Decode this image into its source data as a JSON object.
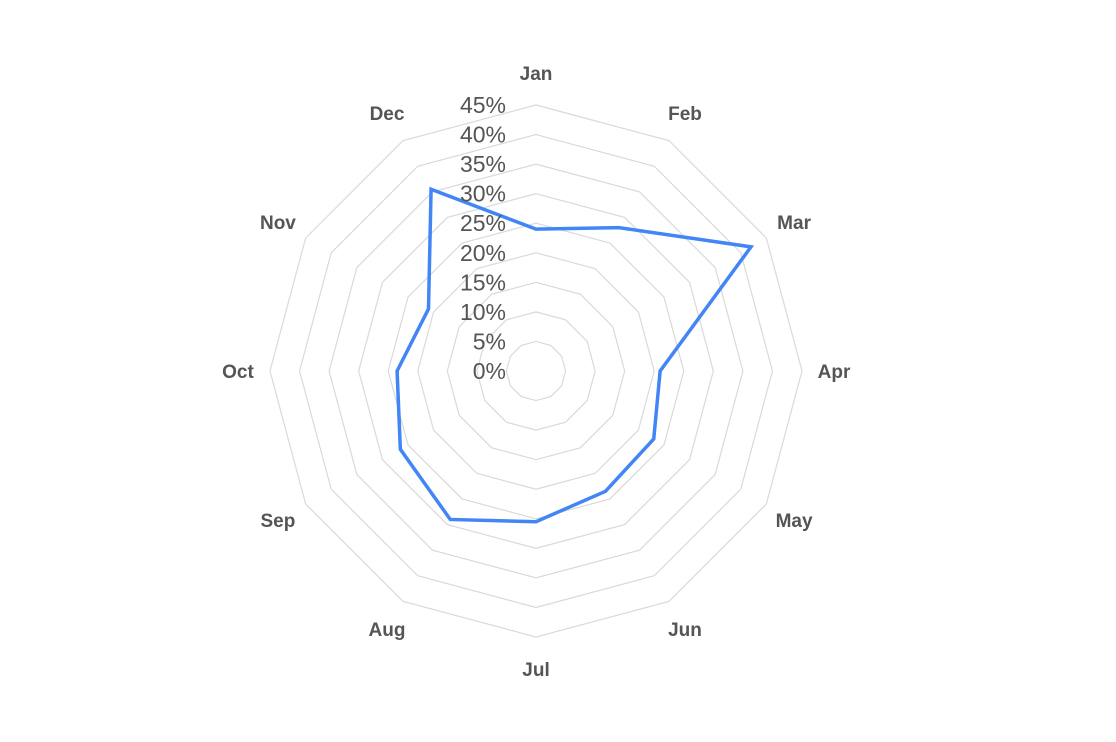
{
  "chart_data": {
    "type": "radar",
    "categories": [
      "Jan",
      "Feb",
      "Mar",
      "Apr",
      "May",
      "Jun",
      "Jul",
      "Aug",
      "Sep",
      "Oct",
      "Nov",
      "Dec"
    ],
    "series": [
      {
        "values": [
          24,
          28,
          42,
          21,
          23,
          23.5,
          25.5,
          29,
          26.5,
          23.5,
          21,
          35.5
        ],
        "color": "#4285f4"
      }
    ],
    "rlim": [
      0,
      45
    ],
    "tick_labels": [
      "0%",
      "5%",
      "10%",
      "15%",
      "20%",
      "25%",
      "30%",
      "35%",
      "40%",
      "45%"
    ],
    "tick_values": [
      0,
      5,
      10,
      15,
      20,
      25,
      30,
      35,
      40,
      45
    ],
    "grid": true,
    "grid_color": "#d9d9d9",
    "legend": "none"
  }
}
